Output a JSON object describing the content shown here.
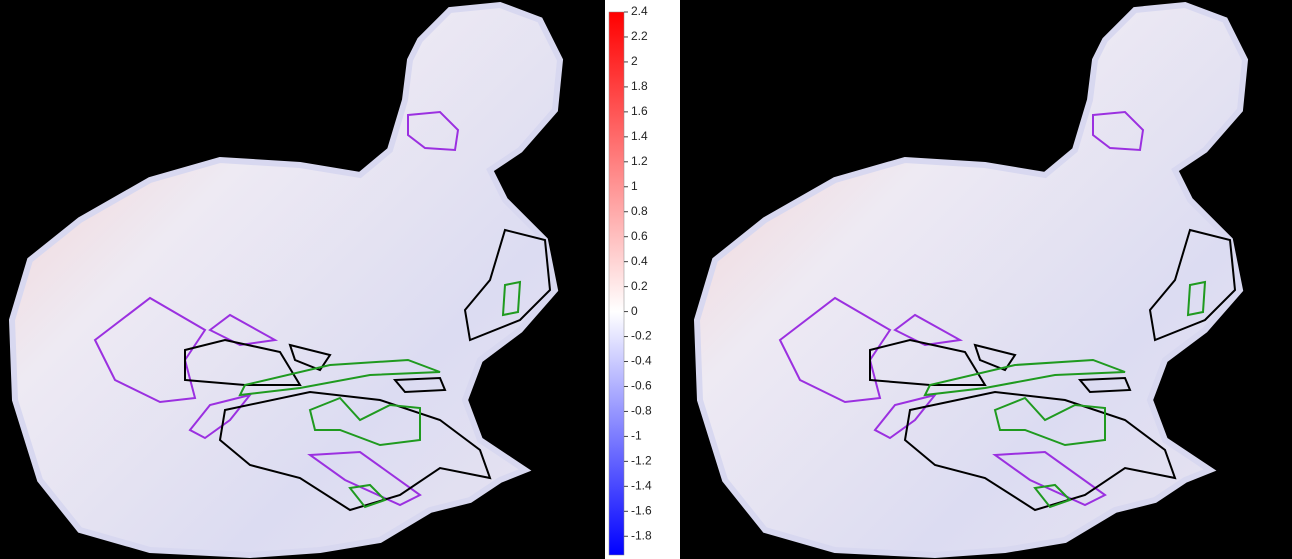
{
  "colorbar": {
    "lim": [
      -1.95,
      2.4
    ],
    "ticks": [
      2.4,
      2.2,
      2,
      1.8,
      1.6,
      1.4,
      1.2,
      1,
      0.8,
      0.6,
      0.4,
      0.2,
      0,
      -0.2,
      -0.4,
      -0.6,
      -0.8,
      -1,
      -1.2,
      -1.4,
      -1.6,
      -1.8
    ],
    "colors": [
      "#0000ff",
      "#ffffff",
      "#ff0000"
    ]
  }
}
